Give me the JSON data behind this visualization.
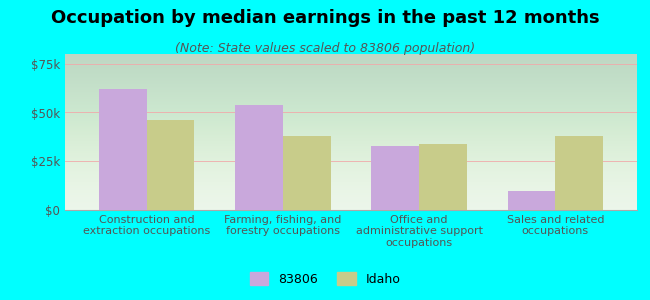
{
  "title": "Occupation by median earnings in the past 12 months",
  "subtitle": "(Note: State values scaled to 83806 population)",
  "categories": [
    "Construction and\nextraction occupations",
    "Farming, fishing, and\nforestry occupations",
    "Office and\nadministrative support\noccupations",
    "Sales and related\noccupations"
  ],
  "values_83806": [
    62000,
    54000,
    33000,
    10000
  ],
  "values_idaho": [
    46000,
    38000,
    34000,
    38000
  ],
  "color_83806": "#c9a8dc",
  "color_idaho": "#c8cc8a",
  "bar_width": 0.35,
  "ylim": [
    0,
    80000
  ],
  "yticks": [
    0,
    25000,
    50000,
    75000
  ],
  "ytick_labels": [
    "$0",
    "$25k",
    "$50k",
    "$75k"
  ],
  "legend_labels": [
    "83806",
    "Idaho"
  ],
  "background_color": "#00ffff",
  "title_fontsize": 13,
  "subtitle_fontsize": 9,
  "tick_fontsize": 8.5,
  "label_fontsize": 8
}
